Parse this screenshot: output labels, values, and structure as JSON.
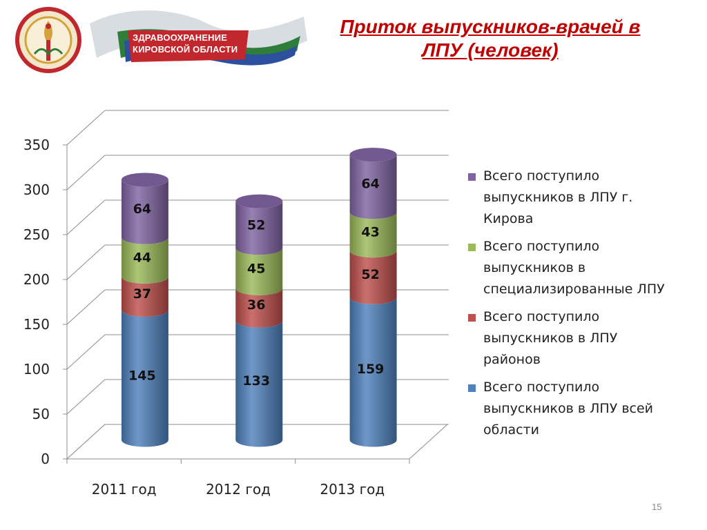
{
  "header": {
    "brand_line1": "ЗДРАВООХРАНЕНИЕ",
    "brand_line2": "КИРОВСКОЙ ОБЛАСТИ",
    "title_line1": "Приток выпускников-врачей в",
    "title_line2": "ЛПУ (человек)"
  },
  "colors": {
    "title": "#c00000",
    "series": [
      "#4f81bd",
      "#c0504d",
      "#9bbb59",
      "#8064a2"
    ]
  },
  "chart_data": {
    "type": "bar",
    "stacked": true,
    "three_d": true,
    "categories": [
      "2011 год",
      "2012 год",
      "2013 год"
    ],
    "series": [
      {
        "name": "Всего поступило выпускников в ЛПУ всей области",
        "values": [
          145,
          133,
          159
        ]
      },
      {
        "name": "Всего поступило выпускников в ЛПУ районов",
        "values": [
          37,
          36,
          52
        ]
      },
      {
        "name": "Всего поступило выпускников в специализированные ЛПУ",
        "values": [
          44,
          45,
          43
        ]
      },
      {
        "name": "Всего поступило выпускников в ЛПУ г. Кирова",
        "values": [
          64,
          52,
          64
        ]
      }
    ],
    "ylim": [
      0,
      350
    ],
    "yticks": [
      0,
      50,
      100,
      150,
      200,
      250,
      300,
      350
    ],
    "grid": true,
    "legend_position": "right"
  },
  "legend": [
    [
      "Всего поступило",
      "выпускников в ЛПУ г.",
      "Кирова"
    ],
    [
      "Всего поступило",
      "выпускников в",
      "специализированные ЛПУ"
    ],
    [
      "Всего поступило",
      "выпускников в ЛПУ",
      "районов"
    ],
    [
      "Всего поступило",
      "выпускников в ЛПУ всей",
      "области"
    ]
  ],
  "page_number": "15"
}
